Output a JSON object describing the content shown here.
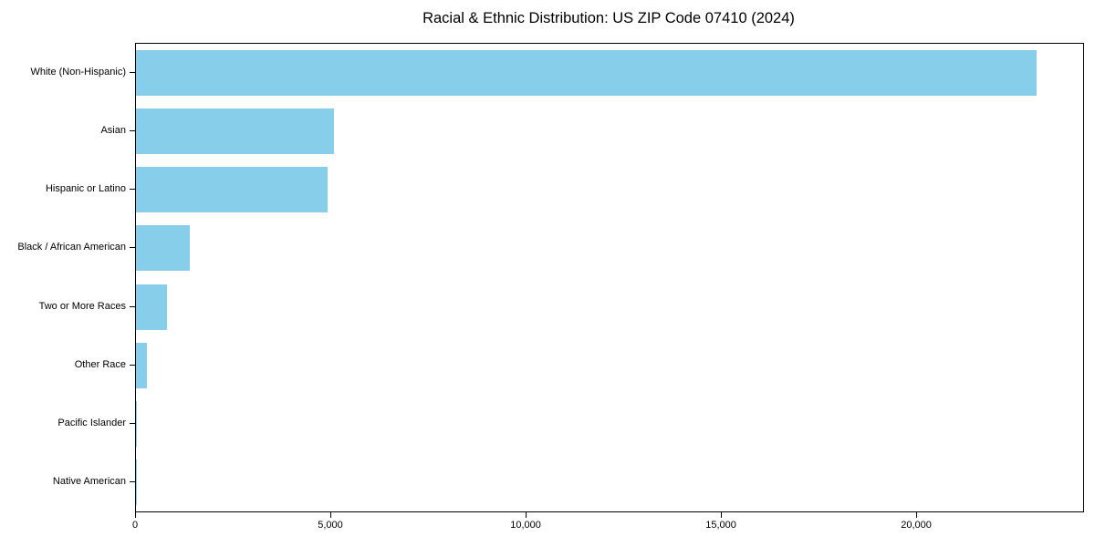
{
  "chart_data": {
    "type": "bar",
    "orientation": "horizontal",
    "title": "Racial & Ethnic Distribution: US ZIP Code 07410 (2024)",
    "categories": [
      "White (Non-Hispanic)",
      "Asian",
      "Hispanic or Latino",
      "Black / African American",
      "Two or More Races",
      "Other Race",
      "Pacific Islander",
      "Native American"
    ],
    "values": [
      23060,
      5070,
      4910,
      1380,
      795,
      270,
      25,
      10
    ],
    "xlabel": "",
    "ylabel": "",
    "xlim": [
      0,
      24250
    ],
    "xticks": [
      0,
      5000,
      10000,
      15000,
      20000
    ],
    "xtick_labels": [
      "0",
      "5,000",
      "10,000",
      "15,000",
      "20,000"
    ],
    "grid": false,
    "legend": false,
    "bar_color": "#87CEEB",
    "spine_color": "#000000",
    "bar_height_fraction": 0.78
  }
}
